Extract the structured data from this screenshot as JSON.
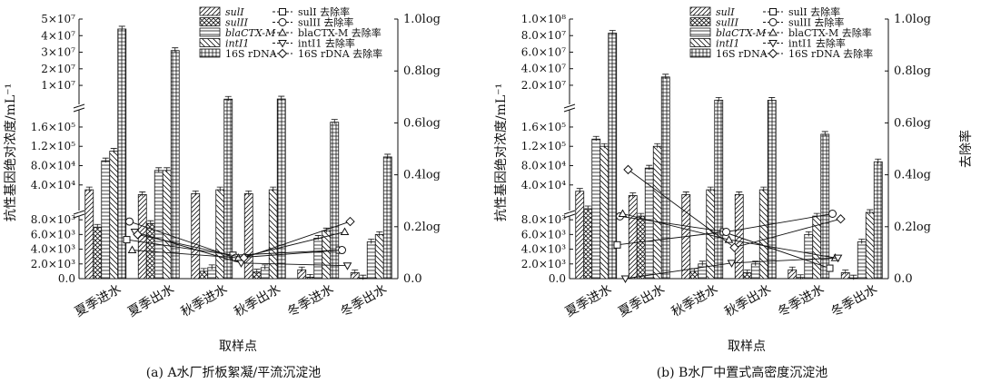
{
  "chart_data": [
    {
      "type": "bar",
      "title": "(a) A水厂折板絮凝/平流沉淀池",
      "xlabel": "取样点",
      "ylabel": "抗性基因绝对浓度/mL⁻¹",
      "y2label": "",
      "categories": [
        "夏季进水",
        "夏季出水",
        "秋季进水",
        "秋季出水",
        "冬季进水",
        "冬季出水"
      ],
      "axis_break": {
        "lower_ticks": [
          "0.0",
          "2.0×10³",
          "4.0×10³",
          "6.0×10³",
          "8.0×10³"
        ],
        "lower_max": 9500,
        "middle_ticks": [
          "4.0×10⁴",
          "8.0×10⁴",
          "1.2×10⁵",
          "1.6×10⁵"
        ],
        "middle_range": [
          9500,
          190000
        ],
        "upper_ticks": [
          "1×10⁷",
          "2×10⁷",
          "3×10⁷",
          "4×10⁷",
          "5×10⁷"
        ],
        "upper_range": [
          190000,
          50000000
        ]
      },
      "y2_ticks": [
        "0.0",
        "0.2log",
        "0.4log",
        "0.6log",
        "0.8log",
        "1.0log"
      ],
      "y2lim": [
        0,
        1.0
      ],
      "series": [
        {
          "name": "sulI",
          "values": [
            30000,
            20000,
            22000,
            22000,
            1200,
            800
          ]
        },
        {
          "name": "sulII",
          "values": [
            7000,
            7500,
            1000,
            900,
            200,
            100
          ]
        },
        {
          "name": "blaCTX-M",
          "values": [
            90000,
            70000,
            1500,
            1500,
            5500,
            5000
          ]
        },
        {
          "name": "intI1",
          "values": [
            110000,
            70000,
            30000,
            30000,
            6500,
            6000
          ]
        },
        {
          "name": "16S rDNA",
          "values": [
            44000000,
            31000000,
            1700000,
            1800000,
            170000,
            98000
          ]
        }
      ],
      "removal_series": [
        {
          "name": "sulI 去除率",
          "values": [
            0.15,
            0.09,
            0.11
          ]
        },
        {
          "name": "sulII 去除率",
          "values": [
            0.22,
            0.08,
            0.11
          ]
        },
        {
          "name": "blaCTX-M 去除率",
          "values": [
            0.11,
            0.08,
            0.18
          ]
        },
        {
          "name": "intI1 去除率",
          "values": [
            0.18,
            0.06,
            0.05
          ]
        },
        {
          "name": "16S rDNA 去除率",
          "values": [
            0.17,
            0.08,
            0.22
          ]
        }
      ]
    },
    {
      "type": "bar",
      "title": "(b) B水厂中置式高密度沉淀池",
      "xlabel": "取样点",
      "ylabel": "抗性基因绝对浓度/mL⁻¹",
      "y2label": "去除率",
      "categories": [
        "夏季进水",
        "夏季出水",
        "秋季进水",
        "秋季出水",
        "冬季进水",
        "冬季出水"
      ],
      "axis_break": {
        "lower_ticks": [
          "0.0",
          "2.0×10³",
          "4.0×10³",
          "6.0×10³",
          "8.0×10³"
        ],
        "lower_max": 9500,
        "middle_ticks": [
          "4.0×10⁴",
          "8.0×10⁴",
          "1.2×10⁵",
          "1.6×10⁵"
        ],
        "middle_range": [
          9500,
          190000
        ],
        "upper_ticks": [
          "2.0×10⁷",
          "4.0×10⁷",
          "6.0×10⁷",
          "8.0×10⁷",
          "1.0×10⁸"
        ],
        "upper_range": [
          190000,
          100000000
        ]
      },
      "y2_ticks": [
        "0.0",
        "0.2log",
        "0.4log",
        "0.6log",
        "0.8log",
        "1.0log"
      ],
      "y2lim": [
        0,
        1.0
      ],
      "series": [
        {
          "name": "sulI",
          "values": [
            27000,
            18000,
            20000,
            20000,
            1200,
            800
          ]
        },
        {
          "name": "sulII",
          "values": [
            9500,
            8500,
            1000,
            800,
            150,
            100
          ]
        },
        {
          "name": "blaCTX-M",
          "values": [
            135000,
            75000,
            2000,
            2000,
            6000,
            5000
          ]
        },
        {
          "name": "intI1",
          "values": [
            120000,
            120000,
            30000,
            30000,
            8500,
            9000
          ]
        },
        {
          "name": "16S rDNA",
          "values": [
            83000000,
            30000000,
            2000000,
            1900000,
            145000,
            88000
          ]
        }
      ],
      "removal_series": [
        {
          "name": "sulI 去除率",
          "values": [
            0.13,
            0.18,
            0.04
          ]
        },
        {
          "name": "sulII 去除率",
          "values": [
            0.24,
            0.18,
            0.25
          ]
        },
        {
          "name": "blaCTX-M 去除率",
          "values": [
            0.25,
            0.15,
            0.08
          ]
        },
        {
          "name": "intI1 去除率",
          "values": [
            0.0,
            0.06,
            0.08
          ]
        },
        {
          "name": "16S rDNA 去除率",
          "values": [
            0.42,
            0.12,
            0.23
          ]
        }
      ]
    }
  ]
}
